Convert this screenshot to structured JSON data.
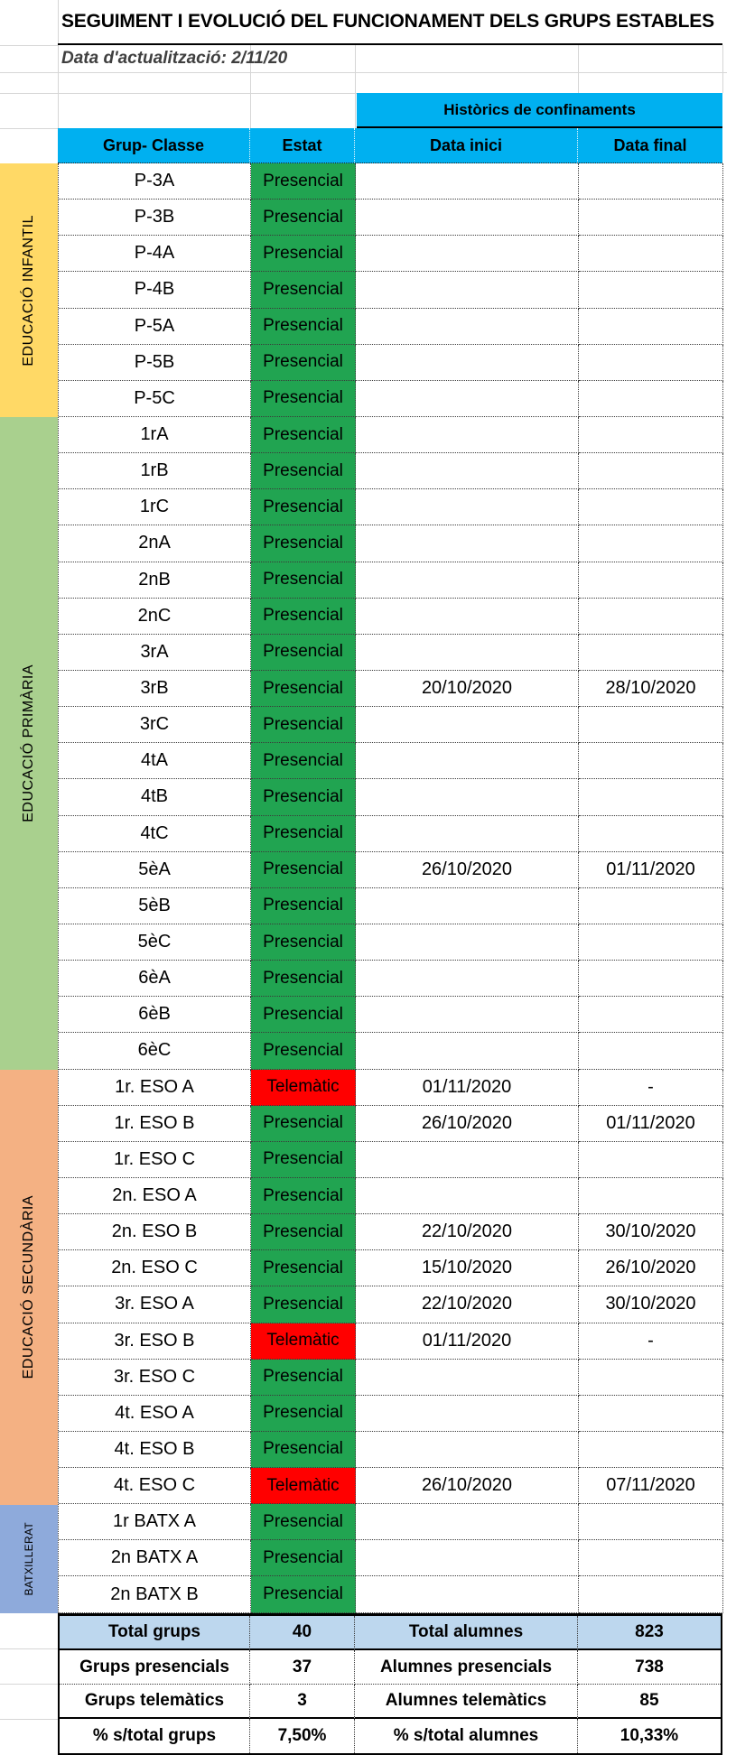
{
  "title": "SEGUIMENT I EVOLUCIÓ DEL FUNCIONAMENT DELS GRUPS ESTABLES",
  "update_date": "Data d'actualització: 2/11/20",
  "confinements_header": "Històrics de confinaments",
  "columns": {
    "group": "Grup- Classe",
    "status": "Estat",
    "start": "Data inici",
    "end": "Data final"
  },
  "statuses": {
    "presencial": "Presencial",
    "telematic": "Telemàtic"
  },
  "colors": {
    "header_blue": "#00B0F0",
    "presencial_green": "#21A451",
    "telematic_red": "#FF0000",
    "infantil_yellow": "#FFD966",
    "primaria_green": "#A9D08E",
    "secundaria_orange": "#F4B183",
    "batxillerat_blue": "#8EAADB",
    "summary_blue": "#BDD7EE"
  },
  "sections": [
    {
      "id": "infantil",
      "label": "EDUCACIÓ INFANTIL",
      "color": "#FFD966",
      "small": false,
      "rows": [
        {
          "group": "P-3A",
          "status": "Presencial",
          "start": "",
          "end": ""
        },
        {
          "group": "P-3B",
          "status": "Presencial",
          "start": "",
          "end": ""
        },
        {
          "group": "P-4A",
          "status": "Presencial",
          "start": "",
          "end": ""
        },
        {
          "group": "P-4B",
          "status": "Presencial",
          "start": "",
          "end": ""
        },
        {
          "group": "P-5A",
          "status": "Presencial",
          "start": "",
          "end": ""
        },
        {
          "group": "P-5B",
          "status": "Presencial",
          "start": "",
          "end": ""
        },
        {
          "group": "P-5C",
          "status": "Presencial",
          "start": "",
          "end": ""
        }
      ]
    },
    {
      "id": "primaria",
      "label": "EDUCACIÓ PRIMÀRIA",
      "color": "#A9D08E",
      "small": false,
      "rows": [
        {
          "group": "1rA",
          "status": "Presencial",
          "start": "",
          "end": ""
        },
        {
          "group": "1rB",
          "status": "Presencial",
          "start": "",
          "end": ""
        },
        {
          "group": "1rC",
          "status": "Presencial",
          "start": "",
          "end": ""
        },
        {
          "group": "2nA",
          "status": "Presencial",
          "start": "",
          "end": ""
        },
        {
          "group": "2nB",
          "status": "Presencial",
          "start": "",
          "end": ""
        },
        {
          "group": "2nC",
          "status": "Presencial",
          "start": "",
          "end": ""
        },
        {
          "group": "3rA",
          "status": "Presencial",
          "start": "",
          "end": ""
        },
        {
          "group": "3rB",
          "status": "Presencial",
          "start": "20/10/2020",
          "end": "28/10/2020"
        },
        {
          "group": "3rC",
          "status": "Presencial",
          "start": "",
          "end": ""
        },
        {
          "group": "4tA",
          "status": "Presencial",
          "start": "",
          "end": ""
        },
        {
          "group": "4tB",
          "status": "Presencial",
          "start": "",
          "end": ""
        },
        {
          "group": "4tC",
          "status": "Presencial",
          "start": "",
          "end": ""
        },
        {
          "group": "5èA",
          "status": "Presencial",
          "start": "26/10/2020",
          "end": "01/11/2020"
        },
        {
          "group": "5èB",
          "status": "Presencial",
          "start": "",
          "end": ""
        },
        {
          "group": "5èC",
          "status": "Presencial",
          "start": "",
          "end": ""
        },
        {
          "group": "6èA",
          "status": "Presencial",
          "start": "",
          "end": ""
        },
        {
          "group": "6èB",
          "status": "Presencial",
          "start": "",
          "end": ""
        },
        {
          "group": "6èC",
          "status": "Presencial",
          "start": "",
          "end": ""
        }
      ]
    },
    {
      "id": "secundaria",
      "label": "EDUCACIÓ SECUNDÀRIA",
      "color": "#F4B183",
      "small": false,
      "rows": [
        {
          "group": "1r. ESO A",
          "status": "Telemàtic",
          "start": "01/11/2020",
          "end": "-"
        },
        {
          "group": "1r. ESO B",
          "status": "Presencial",
          "start": "26/10/2020",
          "end": "01/11/2020"
        },
        {
          "group": "1r. ESO C",
          "status": "Presencial",
          "start": "",
          "end": ""
        },
        {
          "group": "2n. ESO A",
          "status": "Presencial",
          "start": "",
          "end": ""
        },
        {
          "group": "2n. ESO B",
          "status": "Presencial",
          "start": "22/10/2020",
          "end": "30/10/2020"
        },
        {
          "group": "2n. ESO C",
          "status": "Presencial",
          "start": "15/10/2020",
          "end": "26/10/2020"
        },
        {
          "group": "3r. ESO A",
          "status": "Presencial",
          "start": "22/10/2020",
          "end": "30/10/2020"
        },
        {
          "group": "3r. ESO B",
          "status": "Telemàtic",
          "start": "01/11/2020",
          "end": "-"
        },
        {
          "group": "3r. ESO C",
          "status": "Presencial",
          "start": "",
          "end": ""
        },
        {
          "group": "4t. ESO A",
          "status": "Presencial",
          "start": "",
          "end": ""
        },
        {
          "group": "4t. ESO B",
          "status": "Presencial",
          "start": "",
          "end": ""
        },
        {
          "group": "4t. ESO C",
          "status": "Telemàtic",
          "start": "26/10/2020",
          "end": "07/11/2020"
        }
      ]
    },
    {
      "id": "batxillerat",
      "label": "BATXILLERAT",
      "color": "#8EAADB",
      "small": true,
      "rows": [
        {
          "group": "1r BATX A",
          "status": "Presencial",
          "start": "",
          "end": ""
        },
        {
          "group": "2n BATX A",
          "status": "Presencial",
          "start": "",
          "end": ""
        },
        {
          "group": "2n BATX B",
          "status": "Presencial",
          "start": "",
          "end": ""
        }
      ]
    }
  ],
  "summary": {
    "rows": [
      {
        "left_label": "Total grups",
        "left_value": "40",
        "right_label": "Total alumnes",
        "right_value": "823",
        "highlight": true,
        "separator": "solid"
      },
      {
        "left_label": "Grups presencials",
        "left_value": "37",
        "right_label": "Alumnes presencials",
        "right_value": "738",
        "highlight": false,
        "separator": "dotted"
      },
      {
        "left_label": "Grups telemàtics",
        "left_value": "3",
        "right_label": "Alumnes telemàtics",
        "right_value": "85",
        "highlight": false,
        "separator": "solid"
      },
      {
        "left_label": "% s/total grups",
        "left_value": "7,50%",
        "right_label": "% s/total alumnes",
        "right_value": "10,33%",
        "highlight": false,
        "separator": "none"
      }
    ]
  }
}
